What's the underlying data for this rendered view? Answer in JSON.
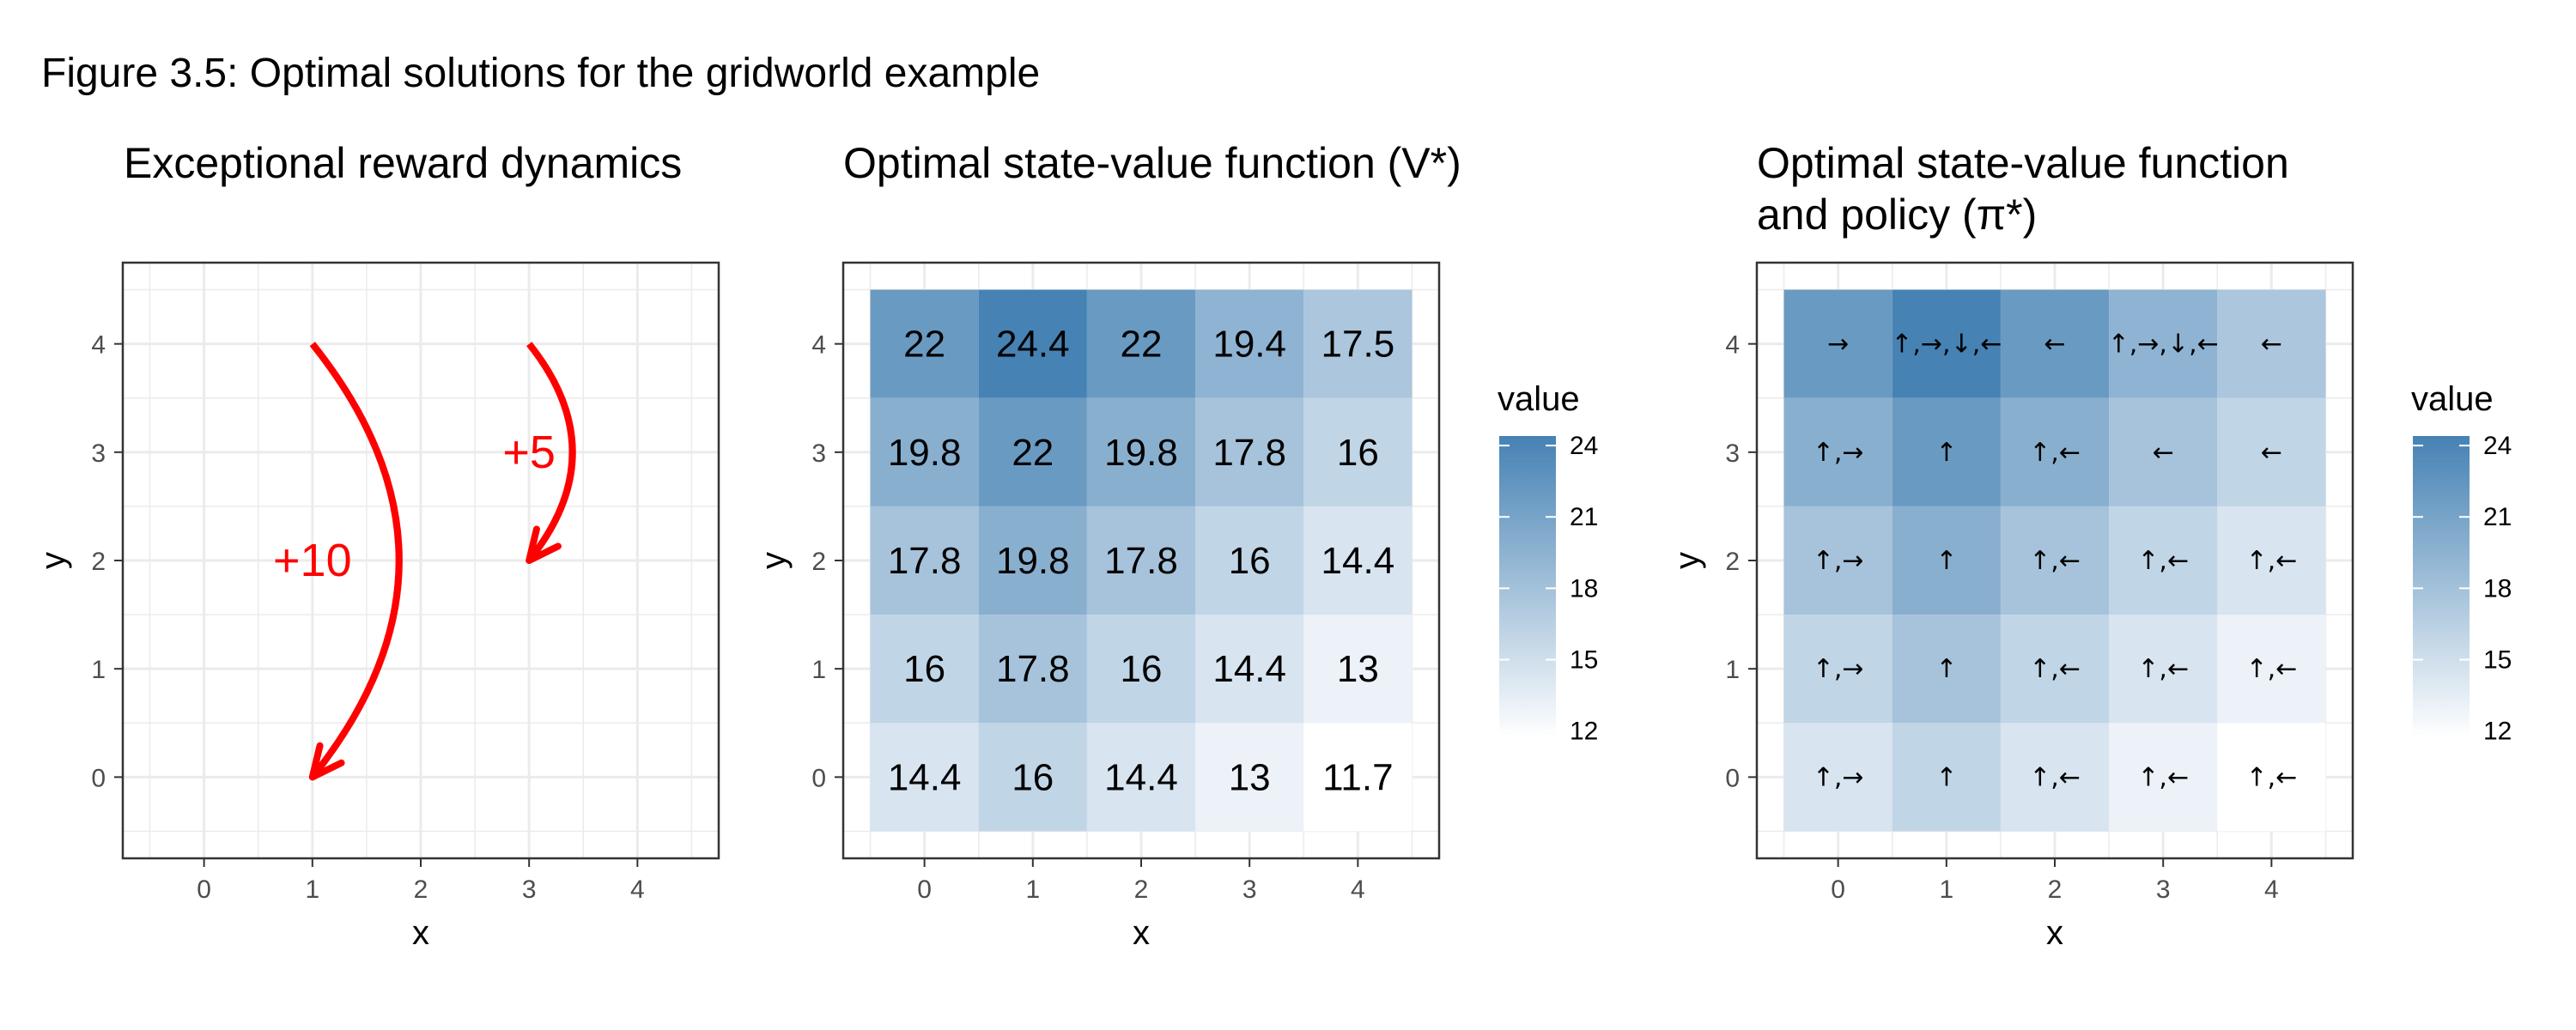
{
  "figure_title": "Figure 3.5: Optimal solutions for the gridworld example",
  "chart_data": [
    {
      "type": "scatter",
      "title": "Exceptional reward dynamics",
      "xlabel": "x",
      "ylabel": "y",
      "x_ticks": [
        "0",
        "1",
        "2",
        "3",
        "4"
      ],
      "y_ticks": [
        "0",
        "1",
        "2",
        "3",
        "4"
      ],
      "xlim": [
        -0.5,
        4.5
      ],
      "ylim": [
        -0.5,
        4.5
      ],
      "grid": true,
      "arrows": [
        {
          "from": [
            1,
            4
          ],
          "to": [
            1,
            0
          ],
          "label": "+10",
          "label_pos": [
            1,
            2
          ]
        },
        {
          "from": [
            3,
            4
          ],
          "to": [
            3,
            2
          ],
          "label": "+5",
          "label_pos": [
            3,
            3
          ]
        }
      ],
      "arrow_color": "#ff0000"
    },
    {
      "type": "heatmap",
      "title": "Optimal state-value function (V*)",
      "xlabel": "x",
      "ylabel": "y",
      "x_ticks": [
        "0",
        "1",
        "2",
        "3",
        "4"
      ],
      "y_ticks": [
        "0",
        "1",
        "2",
        "3",
        "4"
      ],
      "rows": [
        {
          "y": 4,
          "values": [
            22,
            24.4,
            22,
            19.4,
            17.5
          ]
        },
        {
          "y": 3,
          "values": [
            19.8,
            22,
            19.8,
            17.8,
            16
          ]
        },
        {
          "y": 2,
          "values": [
            17.8,
            19.8,
            17.8,
            16,
            14.4
          ]
        },
        {
          "y": 1,
          "values": [
            16,
            17.8,
            16,
            14.4,
            13
          ]
        },
        {
          "y": 0,
          "values": [
            14.4,
            16,
            14.4,
            13,
            11.7
          ]
        }
      ],
      "labels": [
        [
          "22",
          "24.4",
          "22",
          "19.4",
          "17.5"
        ],
        [
          "19.8",
          "22",
          "19.8",
          "17.8",
          "16"
        ],
        [
          "17.8",
          "19.8",
          "17.8",
          "16",
          "14.4"
        ],
        [
          "16",
          "17.8",
          "16",
          "14.4",
          "13"
        ],
        [
          "14.4",
          "16",
          "14.4",
          "13",
          "11.7"
        ]
      ],
      "legend": {
        "title": "value",
        "ticks": [
          "24",
          "21",
          "18",
          "15",
          "12"
        ],
        "tick_values": [
          24,
          21,
          18,
          15,
          12
        ],
        "range": [
          11.7,
          24.4
        ]
      },
      "colors": {
        "low": "#ffffff",
        "high": "#4682b4"
      }
    },
    {
      "type": "heatmap",
      "title": "Optimal state-value function\nand policy (π*)",
      "xlabel": "x",
      "ylabel": "y",
      "x_ticks": [
        "0",
        "1",
        "2",
        "3",
        "4"
      ],
      "y_ticks": [
        "0",
        "1",
        "2",
        "3",
        "4"
      ],
      "rows": [
        {
          "y": 4,
          "values": [
            22,
            24.4,
            22,
            19.4,
            17.5
          ]
        },
        {
          "y": 3,
          "values": [
            19.8,
            22,
            19.8,
            17.8,
            16
          ]
        },
        {
          "y": 2,
          "values": [
            17.8,
            19.8,
            17.8,
            16,
            14.4
          ]
        },
        {
          "y": 1,
          "values": [
            16,
            17.8,
            16,
            14.4,
            13
          ]
        },
        {
          "y": 0,
          "values": [
            14.4,
            16,
            14.4,
            13,
            11.7
          ]
        }
      ],
      "labels": [
        [
          "→",
          "↑,→,↓,←",
          "←",
          "↑,→,↓,←",
          "←"
        ],
        [
          "↑,→",
          "↑",
          "↑,←",
          "←",
          "←"
        ],
        [
          "↑,→",
          "↑",
          "↑,←",
          "↑,←",
          "↑,←"
        ],
        [
          "↑,→",
          "↑",
          "↑,←",
          "↑,←",
          "↑,←"
        ],
        [
          "↑,→",
          "↑",
          "↑,←",
          "↑,←",
          "↑,←"
        ]
      ],
      "legend": {
        "title": "value",
        "ticks": [
          "24",
          "21",
          "18",
          "15",
          "12"
        ],
        "tick_values": [
          24,
          21,
          18,
          15,
          12
        ],
        "range": [
          11.7,
          24.4
        ]
      },
      "colors": {
        "low": "#ffffff",
        "high": "#4682b4"
      }
    }
  ]
}
